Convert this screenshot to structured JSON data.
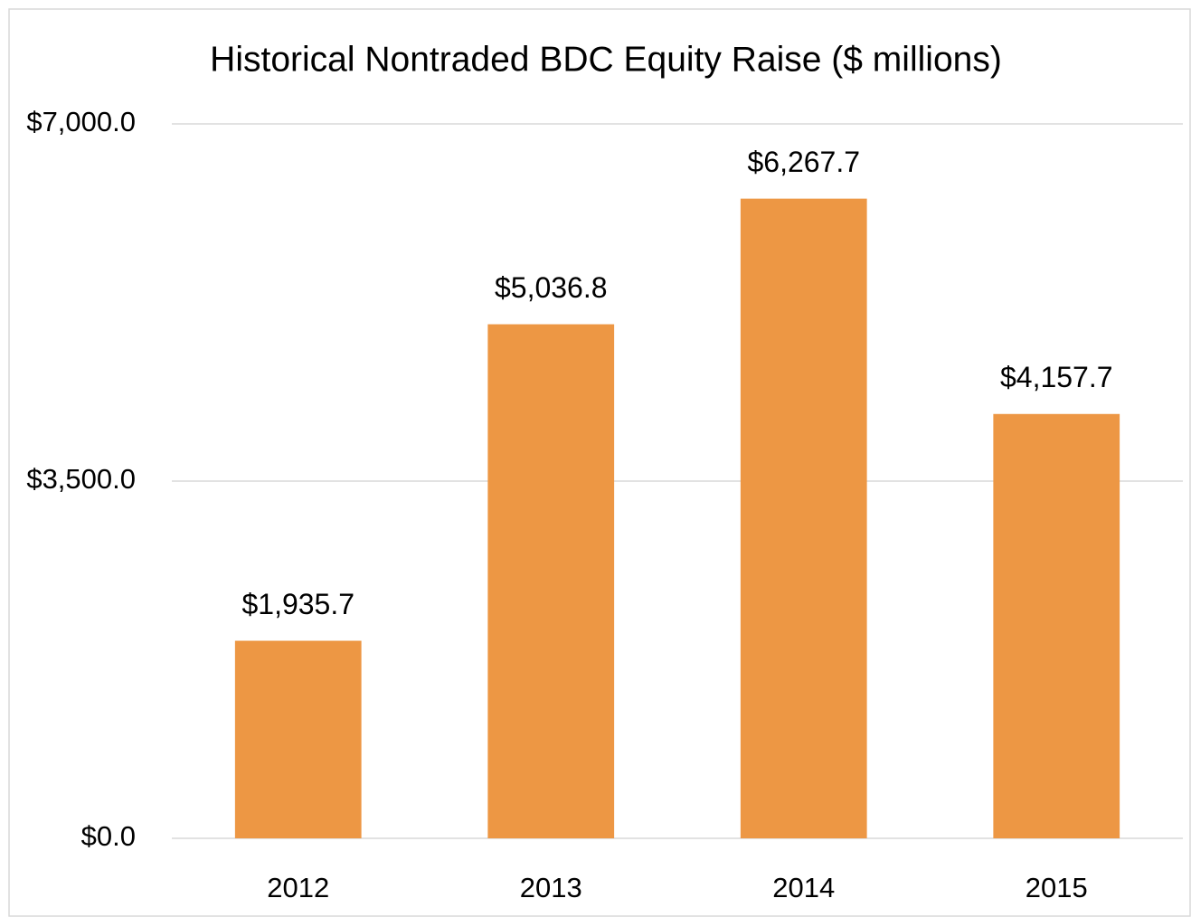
{
  "chart_data": {
    "type": "bar",
    "title": "Historical Nontraded BDC Equity Raise ($ millions)",
    "categories": [
      "2012",
      "2013",
      "2014",
      "2015"
    ],
    "values": [
      1935.7,
      5036.8,
      6267.7,
      4157.7
    ],
    "value_labels": [
      "$1,935.7",
      "$5,036.8",
      "$6,267.7",
      "$4,157.7"
    ],
    "color": "#ed9744",
    "ylim": [
      0,
      7000
    ],
    "yticks": [
      {
        "value": 0,
        "label": "$0.0"
      },
      {
        "value": 3500,
        "label": "$3,500.0"
      },
      {
        "value": 7000,
        "label": "$7,000.0"
      }
    ],
    "grid": true
  }
}
